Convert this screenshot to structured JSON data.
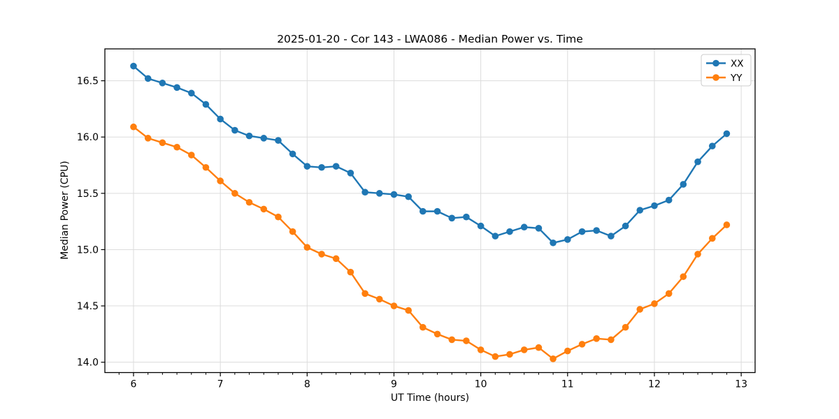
{
  "chart_data": {
    "type": "line",
    "title": "2025-01-20 - Cor 143 - LWA086 - Median Power vs. Time",
    "xlabel": "UT Time (hours)",
    "ylabel": "Median Power (CPU)",
    "x": [
      6.0,
      6.167,
      6.333,
      6.5,
      6.667,
      6.833,
      7.0,
      7.167,
      7.333,
      7.5,
      7.667,
      7.833,
      8.0,
      8.167,
      8.333,
      8.5,
      8.667,
      8.833,
      9.0,
      9.167,
      9.333,
      9.5,
      9.667,
      9.833,
      10.0,
      10.167,
      10.333,
      10.5,
      10.667,
      10.833,
      11.0,
      11.167,
      11.333,
      11.5,
      11.667,
      11.833,
      12.0,
      12.167,
      12.333,
      12.5,
      12.667,
      12.833
    ],
    "series": [
      {
        "name": "XX",
        "color": "#1f77b4",
        "values": [
          16.63,
          16.52,
          16.48,
          16.44,
          16.39,
          16.29,
          16.16,
          16.06,
          16.01,
          15.99,
          15.97,
          15.85,
          15.74,
          15.73,
          15.74,
          15.68,
          15.51,
          15.5,
          15.49,
          15.47,
          15.34,
          15.34,
          15.28,
          15.29,
          15.21,
          15.12,
          15.16,
          15.2,
          15.19,
          15.06,
          15.09,
          15.16,
          15.17,
          15.12,
          15.21,
          15.35,
          15.39,
          15.44,
          15.58,
          15.78,
          15.92,
          16.03
        ]
      },
      {
        "name": "YY",
        "color": "#ff7f0e",
        "values": [
          16.09,
          15.99,
          15.95,
          15.91,
          15.84,
          15.73,
          15.61,
          15.5,
          15.42,
          15.36,
          15.29,
          15.16,
          15.02,
          14.96,
          14.92,
          14.8,
          14.61,
          14.56,
          14.5,
          14.46,
          14.31,
          14.25,
          14.2,
          14.19,
          14.11,
          14.05,
          14.07,
          14.11,
          14.13,
          14.03,
          14.1,
          14.16,
          14.21,
          14.2,
          14.31,
          14.47,
          14.52,
          14.61,
          14.76,
          14.96,
          15.1,
          15.22
        ]
      }
    ],
    "xlim": [
      5.67,
      13.16
    ],
    "ylim": [
      13.908,
      16.783
    ],
    "xticks": [
      6,
      7,
      8,
      9,
      10,
      11,
      12,
      13
    ],
    "xtick_labels": [
      "6",
      "7",
      "8",
      "9",
      "10",
      "11",
      "12",
      "13"
    ],
    "yticks": [
      14.0,
      14.5,
      15.0,
      15.5,
      16.0,
      16.5
    ],
    "ytick_labels": [
      "14.0",
      "14.5",
      "15.0",
      "15.5",
      "16.0",
      "16.5"
    ],
    "minor_tick_step_x": 0.166667,
    "grid": true,
    "grid_color": "#dcdcdc",
    "axis_color": "#000000",
    "marker": "circle",
    "legend": {
      "location": "upper right",
      "labels": [
        "XX",
        "YY"
      ]
    }
  }
}
